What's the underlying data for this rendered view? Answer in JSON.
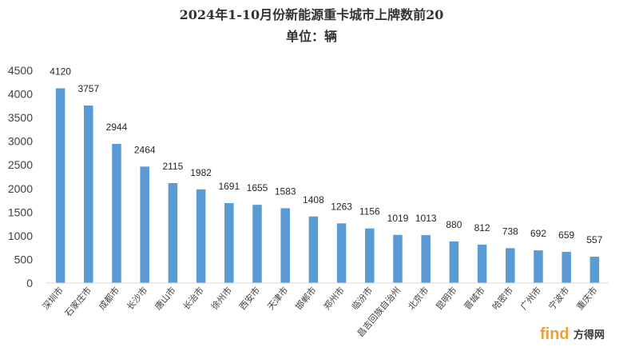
{
  "chart_data": {
    "type": "bar",
    "title": "2024年1-10月份新能源重卡城市上牌数前20",
    "subtitle": "单位：辆",
    "xlabel": "",
    "ylabel": "",
    "ylim": [
      0,
      4500
    ],
    "yticks": [
      0,
      500,
      1000,
      1500,
      2000,
      2500,
      3000,
      3500,
      4000,
      4500
    ],
    "grid": false,
    "legend": "none",
    "bar_color": "#5b9bd5",
    "categories": [
      "深圳市",
      "石家庄市",
      "成都市",
      "长沙市",
      "唐山市",
      "长治市",
      "徐州市",
      "西安市",
      "天津市",
      "邯郸市",
      "郑州市",
      "临汾市",
      "昌吉回族自治州",
      "北京市",
      "昆明市",
      "晋城市",
      "哈密市",
      "广州市",
      "宁波市",
      "重庆市"
    ],
    "values": [
      4120,
      3757,
      2944,
      2464,
      2115,
      1982,
      1691,
      1655,
      1583,
      1408,
      1263,
      1156,
      1019,
      1013,
      880,
      812,
      738,
      692,
      659,
      557
    ]
  },
  "watermark": {
    "text": "find",
    "suffix": "方得网",
    "color": "#e9a23b"
  }
}
